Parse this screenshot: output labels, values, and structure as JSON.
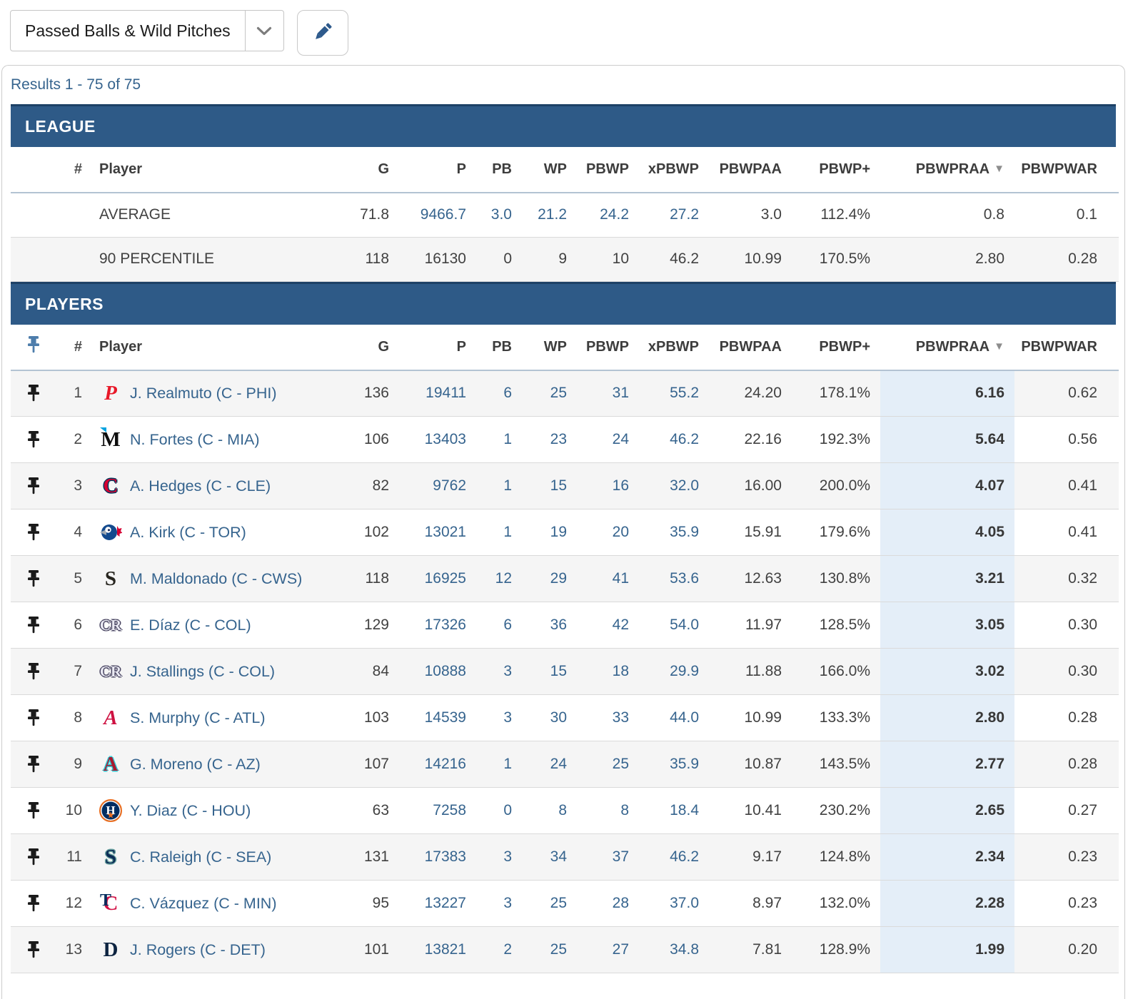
{
  "toolbar": {
    "select_value": "Passed Balls & Wild Pitches",
    "edit_label": "edit"
  },
  "results_summary": "Results 1 - 75 of 75",
  "sections": {
    "league": "LEAGUE",
    "players": "PLAYERS"
  },
  "columns": {
    "rank": "#",
    "player": "Player",
    "g": "G",
    "p": "P",
    "pb": "PB",
    "wp": "WP",
    "pbwp": "PBWP",
    "xpbwp": "xPBWP",
    "pbwpaa": "PBWPAA",
    "pbwp_plus": "PBWP+",
    "pbwpraa": "PBWPRAA",
    "pbwpwar": "PBWPWAR"
  },
  "sort": {
    "column": "pbwpraa",
    "direction": "desc",
    "icon": "▼"
  },
  "colors": {
    "section_bar": "#2e5a87",
    "section_bar_border": "#1d4166",
    "link_blue": "#36648e",
    "highlight_column": "#e4eef8",
    "alt_row": "#f5f5f5",
    "pin_header": "#4d7dab",
    "pin_row": "#1a1a1a",
    "pencil": "#2e5a8c"
  },
  "league_rows": [
    {
      "label": "AVERAGE",
      "g": "71.8",
      "p": "9466.7",
      "pb": "3.0",
      "wp": "21.2",
      "pbwp": "24.2",
      "xpbwp": "27.2",
      "pbwpaa": "3.0",
      "pbwp_plus": "112.4%",
      "pbwpraa": "0.8",
      "pbwpwar": "0.1",
      "blue_stats": [
        "p",
        "pb",
        "wp",
        "pbwp",
        "xpbwp"
      ]
    },
    {
      "label": "90 PERCENTILE",
      "g": "118",
      "p": "16130",
      "pb": "0",
      "wp": "9",
      "pbwp": "10",
      "xpbwp": "46.2",
      "pbwpaa": "10.99",
      "pbwp_plus": "170.5%",
      "pbwpraa": "2.80",
      "pbwpwar": "0.28",
      "blue_stats": []
    }
  ],
  "players": [
    {
      "rank": "1",
      "name": "J. Realmuto (C - PHI)",
      "team": "PHI",
      "logo": {
        "kind": "letter",
        "text": "P",
        "color": "#e81828",
        "script": true
      },
      "g": "136",
      "p": "19411",
      "pb": "6",
      "wp": "25",
      "pbwp": "31",
      "xpbwp": "55.2",
      "pbwpaa": "24.20",
      "pbwp_plus": "178.1%",
      "pbwpraa": "6.16",
      "pbwpwar": "0.62"
    },
    {
      "rank": "2",
      "name": "N. Fortes (C - MIA)",
      "team": "MIA",
      "logo": {
        "kind": "letter",
        "text": "M",
        "color": "#0d0d0d",
        "accent": "#00a3e0"
      },
      "g": "106",
      "p": "13403",
      "pb": "1",
      "wp": "23",
      "pbwp": "24",
      "xpbwp": "46.2",
      "pbwpaa": "22.16",
      "pbwp_plus": "192.3%",
      "pbwpraa": "5.64",
      "pbwpwar": "0.56"
    },
    {
      "rank": "3",
      "name": "A. Hedges (C - CLE)",
      "team": "CLE",
      "logo": {
        "kind": "letter",
        "text": "C",
        "color": "#d50032",
        "outline": "#00385d"
      },
      "g": "82",
      "p": "9762",
      "pb": "1",
      "wp": "15",
      "pbwp": "16",
      "xpbwp": "32.0",
      "pbwpaa": "16.00",
      "pbwp_plus": "200.0%",
      "pbwpraa": "4.07",
      "pbwpwar": "0.41"
    },
    {
      "rank": "4",
      "name": "A. Kirk (C - TOR)",
      "team": "TOR",
      "logo": {
        "kind": "bird",
        "color": "#134a8e",
        "accent": "#d50032"
      },
      "g": "102",
      "p": "13021",
      "pb": "1",
      "wp": "19",
      "pbwp": "20",
      "xpbwp": "35.9",
      "pbwpaa": "15.91",
      "pbwp_plus": "179.6%",
      "pbwpraa": "4.05",
      "pbwpwar": "0.41"
    },
    {
      "rank": "5",
      "name": "M. Maldonado (C - CWS)",
      "team": "CWS",
      "logo": {
        "kind": "letter",
        "text": "S",
        "color": "#27251f"
      },
      "g": "118",
      "p": "16925",
      "pb": "12",
      "wp": "29",
      "pbwp": "41",
      "xpbwp": "53.6",
      "pbwpaa": "12.63",
      "pbwp_plus": "130.8%",
      "pbwpraa": "3.21",
      "pbwpwar": "0.32"
    },
    {
      "rank": "6",
      "name": "E. Díaz (C - COL)",
      "team": "COL",
      "logo": {
        "kind": "letter",
        "text": "CR",
        "color": "#e9e9f2",
        "outline": "#46425f",
        "small": true
      },
      "g": "129",
      "p": "17326",
      "pb": "6",
      "wp": "36",
      "pbwp": "42",
      "xpbwp": "54.0",
      "pbwpaa": "11.97",
      "pbwp_plus": "128.5%",
      "pbwpraa": "3.05",
      "pbwpwar": "0.30"
    },
    {
      "rank": "7",
      "name": "J. Stallings (C - COL)",
      "team": "COL",
      "logo": {
        "kind": "letter",
        "text": "CR",
        "color": "#e9e9f2",
        "outline": "#46425f",
        "small": true
      },
      "g": "84",
      "p": "10888",
      "pb": "3",
      "wp": "15",
      "pbwp": "18",
      "xpbwp": "29.9",
      "pbwpaa": "11.88",
      "pbwp_plus": "166.0%",
      "pbwpraa": "3.02",
      "pbwpwar": "0.30"
    },
    {
      "rank": "8",
      "name": "S. Murphy (C - ATL)",
      "team": "ATL",
      "logo": {
        "kind": "letter",
        "text": "A",
        "color": "#ce1141",
        "script": true
      },
      "g": "103",
      "p": "14539",
      "pb": "3",
      "wp": "30",
      "pbwp": "33",
      "xpbwp": "44.0",
      "pbwpaa": "10.99",
      "pbwp_plus": "133.3%",
      "pbwpraa": "2.80",
      "pbwpwar": "0.28"
    },
    {
      "rank": "9",
      "name": "G. Moreno (C - AZ)",
      "team": "AZ",
      "logo": {
        "kind": "letter",
        "text": "A",
        "color": "#a71930",
        "outline": "#30ced8"
      },
      "g": "107",
      "p": "14216",
      "pb": "1",
      "wp": "24",
      "pbwp": "25",
      "xpbwp": "35.9",
      "pbwpaa": "10.87",
      "pbwp_plus": "143.5%",
      "pbwpraa": "2.77",
      "pbwpwar": "0.28"
    },
    {
      "rank": "10",
      "name": "Y. Diaz (C - HOU)",
      "team": "HOU",
      "logo": {
        "kind": "circle",
        "text": "H",
        "bg": "#002d62",
        "ring": "#eb6e1f",
        "color": "#ffffff",
        "star": "★"
      },
      "g": "63",
      "p": "7258",
      "pb": "0",
      "wp": "8",
      "pbwp": "8",
      "xpbwp": "18.4",
      "pbwpaa": "10.41",
      "pbwp_plus": "230.2%",
      "pbwpraa": "2.65",
      "pbwpwar": "0.27"
    },
    {
      "rank": "11",
      "name": "C. Raleigh (C - SEA)",
      "team": "SEA",
      "logo": {
        "kind": "letter",
        "text": "S",
        "color": "#0c2c56",
        "outline": "#6aa3a0"
      },
      "g": "131",
      "p": "17383",
      "pb": "3",
      "wp": "34",
      "pbwp": "37",
      "xpbwp": "46.2",
      "pbwpaa": "9.17",
      "pbwp_plus": "124.8%",
      "pbwpraa": "2.34",
      "pbwpwar": "0.23"
    },
    {
      "rank": "12",
      "name": "C. Vázquez (C - MIN)",
      "team": "MIN",
      "logo": {
        "kind": "tc",
        "text": "C",
        "color": "#d31145",
        "text2": "T",
        "color2": "#002b5c"
      },
      "g": "95",
      "p": "13227",
      "pb": "3",
      "wp": "25",
      "pbwp": "28",
      "xpbwp": "37.0",
      "pbwpaa": "8.97",
      "pbwp_plus": "132.0%",
      "pbwpraa": "2.28",
      "pbwpwar": "0.23"
    },
    {
      "rank": "13",
      "name": "J. Rogers (C - DET)",
      "team": "DET",
      "logo": {
        "kind": "letter",
        "text": "D",
        "color": "#0c2340"
      },
      "g": "101",
      "p": "13821",
      "pb": "2",
      "wp": "25",
      "pbwp": "27",
      "xpbwp": "34.8",
      "pbwpaa": "7.81",
      "pbwp_plus": "128.9%",
      "pbwpraa": "1.99",
      "pbwpwar": "0.20"
    }
  ],
  "player_blue_stats": [
    "p",
    "pb",
    "wp",
    "pbwp",
    "xpbwp"
  ]
}
